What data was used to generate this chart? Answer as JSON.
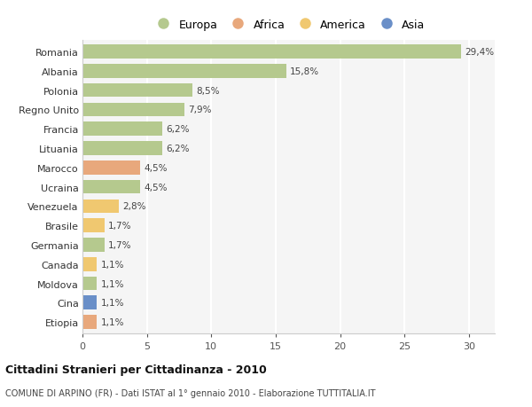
{
  "categories": [
    "Romania",
    "Albania",
    "Polonia",
    "Regno Unito",
    "Francia",
    "Lituania",
    "Marocco",
    "Ucraina",
    "Venezuela",
    "Brasile",
    "Germania",
    "Canada",
    "Moldova",
    "Cina",
    "Etiopia"
  ],
  "values": [
    29.4,
    15.8,
    8.5,
    7.9,
    6.2,
    6.2,
    4.5,
    4.5,
    2.8,
    1.7,
    1.7,
    1.1,
    1.1,
    1.1,
    1.1
  ],
  "labels": [
    "29,4%",
    "15,8%",
    "8,5%",
    "7,9%",
    "6,2%",
    "6,2%",
    "4,5%",
    "4,5%",
    "2,8%",
    "1,7%",
    "1,7%",
    "1,1%",
    "1,1%",
    "1,1%",
    "1,1%"
  ],
  "continents": [
    "Europa",
    "Europa",
    "Europa",
    "Europa",
    "Europa",
    "Europa",
    "Africa",
    "Europa",
    "America",
    "America",
    "Europa",
    "America",
    "Europa",
    "Asia",
    "Africa"
  ],
  "colors": {
    "Europa": "#b5c98e",
    "Africa": "#e8a87c",
    "America": "#f0c870",
    "Asia": "#6a8fc8"
  },
  "legend_order": [
    "Europa",
    "Africa",
    "America",
    "Asia"
  ],
  "title": "Cittadini Stranieri per Cittadinanza - 2010",
  "subtitle": "COMUNE DI ARPINO (FR) - Dati ISTAT al 1° gennaio 2010 - Elaborazione TUTTITALIA.IT",
  "xlim": [
    0,
    32
  ],
  "xticks": [
    0,
    5,
    10,
    15,
    20,
    25,
    30
  ],
  "background_color": "#ffffff",
  "plot_bg_color": "#f5f5f5",
  "grid_color": "#ffffff"
}
